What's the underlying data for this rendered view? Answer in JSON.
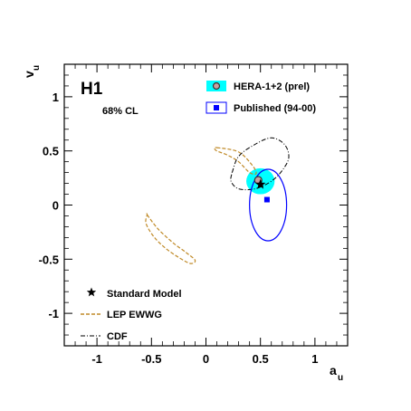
{
  "chart_data": {
    "type": "scatter",
    "experiment_label": "H1",
    "confidence_label": "68% CL",
    "xlabel": "a",
    "xlabel_sub": "u",
    "ylabel": "v",
    "ylabel_sub": "u",
    "xlim": [
      -1.3,
      1.3
    ],
    "ylim": [
      -1.3,
      1.3
    ],
    "xticks": [
      -1,
      -0.5,
      0,
      0.5,
      1
    ],
    "xtick_labels": [
      "-1",
      "-0.5",
      "0",
      "0.5",
      "1"
    ],
    "yticks": [
      -1,
      -0.5,
      0,
      0.5,
      1
    ],
    "ytick_labels": [
      "-1",
      "-0.5",
      "0",
      "0.5",
      "1"
    ],
    "grid": false,
    "legend_top": [
      {
        "label": "HERA-1+2 (prel)",
        "color": "#00ffff"
      },
      {
        "label": "Published (94-00)",
        "color": "#0000ff"
      }
    ],
    "legend_bottom": [
      {
        "label": "Standard Model"
      },
      {
        "label": "LEP EWWG",
        "color": "#c08a28"
      },
      {
        "label": "CDF"
      }
    ],
    "series": [
      {
        "name": "HERA-1+2 (prel)",
        "point": [
          0.48,
          0.23
        ],
        "ellipse": {
          "center": [
            0.5,
            0.22
          ],
          "rx": 0.13,
          "ry": 0.12
        },
        "color": "#00ffff"
      },
      {
        "name": "Published (94-00)",
        "point": [
          0.56,
          0.05
        ],
        "ellipse": {
          "center": [
            0.57,
            0.0
          ],
          "rx": 0.17,
          "ry": 0.33
        },
        "color": "#0000ff"
      },
      {
        "name": "Standard Model",
        "point": [
          0.5,
          0.19
        ]
      },
      {
        "name": "LEP EWWG",
        "color": "#c08a28",
        "contours": [
          [
            [
              0.1,
              0.53
            ],
            [
              0.3,
              0.49
            ],
            [
              0.43,
              0.36
            ],
            [
              0.46,
              0.29
            ],
            [
              0.4,
              0.3
            ],
            [
              0.3,
              0.4
            ],
            [
              0.2,
              0.46
            ],
            [
              0.1,
              0.5
            ],
            [
              0.08,
              0.52
            ]
          ],
          [
            [
              -0.54,
              -0.09
            ],
            [
              -0.44,
              -0.22
            ],
            [
              -0.3,
              -0.35
            ],
            [
              -0.18,
              -0.44
            ],
            [
              -0.1,
              -0.51
            ],
            [
              -0.14,
              -0.54
            ],
            [
              -0.24,
              -0.49
            ],
            [
              -0.37,
              -0.4
            ],
            [
              -0.48,
              -0.29
            ],
            [
              -0.55,
              -0.17
            ],
            [
              -0.54,
              -0.09
            ]
          ]
        ]
      },
      {
        "name": "CDF",
        "contour": [
          [
            0.24,
            0.3
          ],
          [
            0.3,
            0.45
          ],
          [
            0.45,
            0.56
          ],
          [
            0.6,
            0.62
          ],
          [
            0.72,
            0.56
          ],
          [
            0.76,
            0.44
          ],
          [
            0.7,
            0.32
          ],
          [
            0.6,
            0.22
          ],
          [
            0.45,
            0.15
          ],
          [
            0.3,
            0.15
          ],
          [
            0.23,
            0.22
          ],
          [
            0.24,
            0.3
          ]
        ]
      }
    ]
  }
}
